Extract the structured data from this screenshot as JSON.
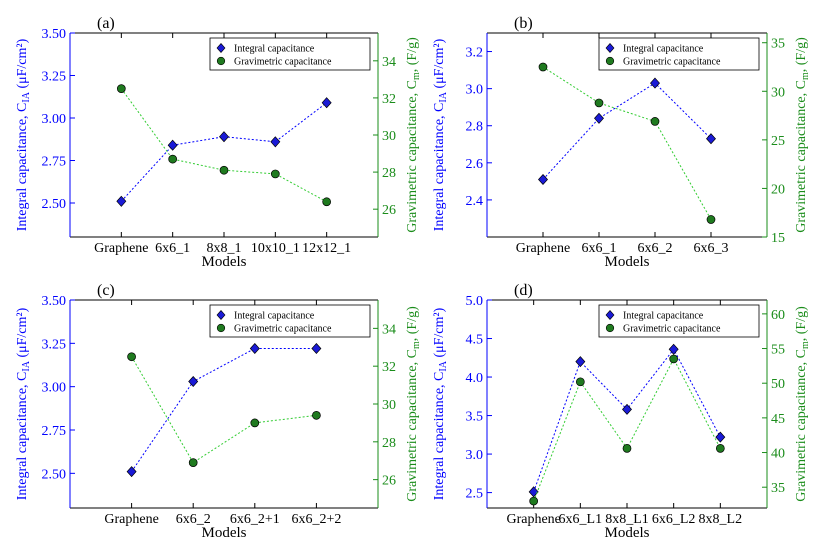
{
  "colors": {
    "integral": "#0000ff",
    "integral_fill": "#1a1ad6",
    "gravimetric_axis": "#1a8c1a",
    "gravimetric_line": "#33cc33",
    "gravimetric_fill": "#1f7a1f",
    "axis": "#000000"
  },
  "chart_data": [
    {
      "type": "line",
      "panel_label": "(a)",
      "categories": [
        "Graphene",
        "6x6_1",
        "8x8_1",
        "10x10_1",
        "12x12_1"
      ],
      "xlabel": "Models",
      "ylabel_left": "Integral capacitance, C_IA (μF/cm²)",
      "ylabel_right": "Gravimetric capacitance, C_m, (F/g)",
      "ylim_left": [
        2.3,
        3.5
      ],
      "ylim_right": [
        24.5,
        35.5
      ],
      "yticks_left": [
        "2.50",
        "2.75",
        "3.00",
        "3.25",
        "3.50"
      ],
      "yticks_right": [
        "26",
        "28",
        "30",
        "32",
        "34"
      ],
      "legend_position": "top-right",
      "series": [
        {
          "name": "Integral capacitance",
          "axis": "left",
          "values": [
            2.51,
            2.84,
            2.89,
            2.86,
            3.09
          ]
        },
        {
          "name": "Gravimetric capacitance",
          "axis": "right",
          "values": [
            32.5,
            28.7,
            28.1,
            27.9,
            26.4
          ]
        }
      ]
    },
    {
      "type": "line",
      "panel_label": "(b)",
      "categories": [
        "Graphene",
        "6x6_1",
        "6x6_2",
        "6x6_3"
      ],
      "xlabel": "Models",
      "ylabel_left": "Integral capacitance, C_IA (μF/cm²)",
      "ylabel_right": "Gravimetric capacitance, C_m, (F/g)",
      "ylim_left": [
        2.2,
        3.3
      ],
      "ylim_right": [
        15,
        36
      ],
      "yticks_left": [
        "2.4",
        "2.6",
        "2.8",
        "3.0",
        "3.2"
      ],
      "yticks_right": [
        "15",
        "20",
        "25",
        "30",
        "35"
      ],
      "legend_position": "top-right",
      "series": [
        {
          "name": "Integral capacitance",
          "axis": "left",
          "values": [
            2.51,
            2.84,
            3.03,
            2.73
          ]
        },
        {
          "name": "Gravimetric capacitance",
          "axis": "right",
          "values": [
            32.5,
            28.8,
            26.9,
            16.8
          ]
        }
      ]
    },
    {
      "type": "line",
      "panel_label": "(c)",
      "categories": [
        "Graphene",
        "6x6_2",
        "6x6_2+1",
        "6x6_2+2"
      ],
      "xlabel": "Models",
      "ylabel_left": "Integral capacitance, C_IA (μF/cm²)",
      "ylabel_right": "Gravimetric capacitance, C_m, (F/g)",
      "ylim_left": [
        2.3,
        3.5
      ],
      "ylim_right": [
        24.5,
        35.5
      ],
      "yticks_left": [
        "2.50",
        "2.75",
        "3.00",
        "3.25",
        "3.50"
      ],
      "yticks_right": [
        "26",
        "28",
        "30",
        "32",
        "34"
      ],
      "legend_position": "top-right",
      "series": [
        {
          "name": "Integral capacitance",
          "axis": "left",
          "values": [
            2.51,
            3.03,
            3.22,
            3.22
          ]
        },
        {
          "name": "Gravimetric capacitance",
          "axis": "right",
          "values": [
            32.5,
            26.9,
            29.0,
            29.4
          ]
        }
      ]
    },
    {
      "type": "line",
      "panel_label": "(d)",
      "categories": [
        "Graphene",
        "6x6_L1",
        "8x8_L1",
        "6x6_L2",
        "8x8_L2"
      ],
      "xlabel": "Models",
      "ylabel_left": "Integral capacitance, C_IA (μF/cm²)",
      "ylabel_right": "Gravimetric capacitance, C_m, (F/g)",
      "ylim_left": [
        2.3,
        5.0
      ],
      "ylim_right": [
        32,
        62
      ],
      "yticks_left": [
        "2.5",
        "3.0",
        "3.5",
        "4.0",
        "4.5",
        "5.0"
      ],
      "yticks_right": [
        "35",
        "40",
        "45",
        "50",
        "55",
        "60"
      ],
      "legend_position": "top-right",
      "series": [
        {
          "name": "Integral capacitance",
          "axis": "left",
          "values": [
            2.51,
            4.2,
            3.58,
            4.36,
            3.22
          ]
        },
        {
          "name": "Gravimetric capacitance",
          "axis": "right",
          "values": [
            33.0,
            50.2,
            40.6,
            53.5,
            40.6
          ]
        }
      ]
    }
  ]
}
